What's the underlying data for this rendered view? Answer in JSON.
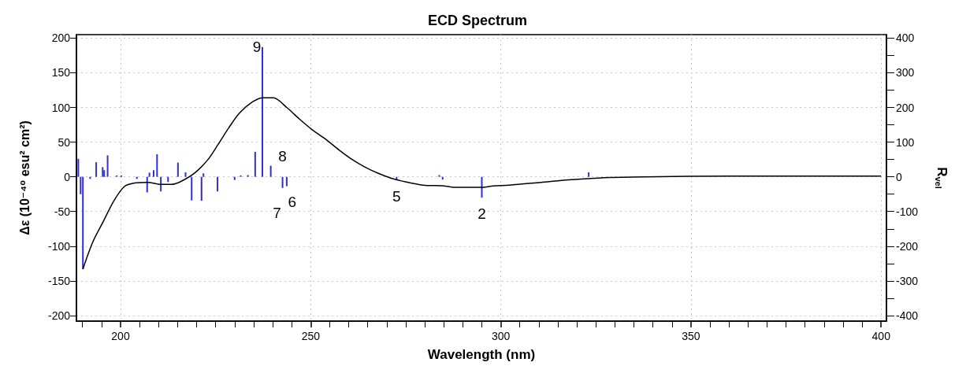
{
  "chart_data": {
    "type": "line",
    "title": "ECD Spectrum",
    "xlabel": "Wavelength (nm)",
    "ylabel": "Δε (10⁻⁴⁰ esu² cm²)",
    "y2label": "R$_{vel}$",
    "xlim": [
      188.4,
      401.4
    ],
    "xticks": [
      {
        "value": 190,
        "label": null
      },
      {
        "value": 195,
        "label": null
      },
      200,
      {
        "value": 205,
        "label": null
      },
      {
        "value": 210,
        "label": null
      },
      {
        "value": 215,
        "label": null
      },
      {
        "value": 220,
        "label": null
      },
      {
        "value": 225,
        "label": null
      },
      {
        "value": 230,
        "label": null
      },
      {
        "value": 235,
        "label": null
      },
      {
        "value": 240,
        "label": null
      },
      {
        "value": 245,
        "label": null
      },
      250,
      {
        "value": 255,
        "label": null
      },
      {
        "value": 260,
        "label": null
      },
      {
        "value": 265,
        "label": null
      },
      {
        "value": 270,
        "label": null
      },
      {
        "value": 275,
        "label": null
      },
      {
        "value": 280,
        "label": null
      },
      {
        "value": 285,
        "label": null
      },
      {
        "value": 290,
        "label": null
      },
      {
        "value": 295,
        "label": null
      },
      300,
      {
        "value": 305,
        "label": null
      },
      {
        "value": 310,
        "label": null
      },
      {
        "value": 315,
        "label": null
      },
      {
        "value": 320,
        "label": null
      },
      {
        "value": 325,
        "label": null
      },
      {
        "value": 330,
        "label": null
      },
      {
        "value": 335,
        "label": null
      },
      {
        "value": 340,
        "label": null
      },
      {
        "value": 345,
        "label": null
      },
      350,
      {
        "value": 355,
        "label": null
      },
      {
        "value": 360,
        "label": null
      },
      {
        "value": 365,
        "label": null
      },
      {
        "value": 370,
        "label": null
      },
      {
        "value": 375,
        "label": null
      },
      {
        "value": 380,
        "label": null
      },
      {
        "value": 385,
        "label": null
      },
      {
        "value": 390,
        "label": null
      },
      {
        "value": 395,
        "label": null
      },
      400
    ],
    "ylim": [
      -208,
      205
    ],
    "yticks": [
      -200,
      -150,
      -100,
      -50,
      0,
      50,
      100,
      150,
      200
    ],
    "y2lim": [
      -416,
      410
    ],
    "y2ticks": [
      -400,
      {
        "value": -350,
        "label": null
      },
      -300,
      {
        "value": -250,
        "label": null
      },
      -200,
      {
        "value": -150,
        "label": null
      },
      -100,
      {
        "value": -50,
        "label": null
      },
      0,
      {
        "value": 50,
        "label": null
      },
      100,
      {
        "value": 150,
        "label": null
      },
      200,
      {
        "value": 250,
        "label": null
      },
      300,
      {
        "value": 350,
        "label": null
      },
      400
    ],
    "grid": true,
    "marker": "none",
    "line_style": "solid",
    "series": [
      {
        "color": "#000000",
        "x": [
          190.1,
          192.7,
          195.5,
          198.2,
          201.0,
          203.7,
          207.2,
          210.6,
          213.4,
          216.1,
          219.6,
          223.0,
          225.8,
          228.5,
          231.3,
          234.7,
          237.5,
          240.2,
          243.7,
          247.1,
          250.6,
          254.0,
          257.4,
          260.9,
          264.3,
          267.8,
          271.2,
          274.7,
          279.5,
          285.0,
          287.7,
          292.6,
          295.3,
          298.0,
          302.2,
          310.5,
          318.7,
          328.4,
          338.0,
          360.0,
          400.0
        ],
        "values": [
          -133,
          -94,
          -64,
          -35,
          -14,
          -9,
          -8,
          -11,
          -11,
          -6,
          6,
          25,
          48,
          71,
          92,
          108,
          114,
          114,
          100,
          83,
          67,
          54,
          39,
          25,
          14,
          5,
          -2,
          -7,
          -12,
          -13,
          -15,
          -15,
          -15,
          -13,
          -12,
          -8,
          -4,
          -1,
          0,
          1,
          1
        ]
      },
      {
        "type": "bar",
        "axis": "y2",
        "color": "#2f2fd8",
        "x": [
          188.9,
          189.5,
          190.1,
          192.0,
          193.6,
          195.3,
          195.7,
          196.6,
          199.0,
          200.2,
          204.3,
          207.0,
          207.6,
          208.7,
          209.6,
          210.6,
          212.5,
          215.1,
          217.1,
          218.7,
          221.3,
          221.8,
          225.5,
          230.0,
          231.6,
          233.5,
          235.4,
          237.3,
          239.5,
          242.6,
          243.7,
          272.6,
          283.8,
          284.7,
          295.0,
          323.1
        ],
        "values": [
          52,
          -50,
          -266,
          -6,
          42,
          28,
          19,
          62,
          4,
          4,
          -6,
          -45,
          12,
          19,
          65,
          -42,
          -15,
          41,
          13,
          -68,
          -69,
          10,
          -42,
          -9,
          4,
          5,
          72,
          374,
          32,
          -32,
          -27,
          -10,
          5,
          -8,
          -60,
          13
        ]
      }
    ],
    "annotations": [
      {
        "text": "9",
        "x": 237.3,
        "y": 187
      },
      {
        "text": "8",
        "x": 239.5,
        "y": 16
      },
      {
        "text": "7",
        "x": 242.6,
        "y": -16
      },
      {
        "text": "6",
        "x": 243.7,
        "y": -13.5
      },
      {
        "text": "5",
        "x": 272.6,
        "y": -5
      },
      {
        "text": "2",
        "x": 295.0,
        "y": -30
      }
    ]
  }
}
